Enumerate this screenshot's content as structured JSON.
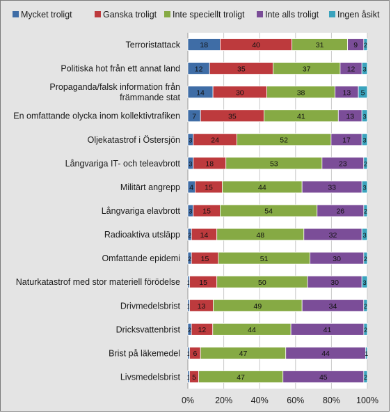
{
  "chart_data": {
    "type": "bar",
    "orientation": "horizontal",
    "stacked": true,
    "percent_stacked": true,
    "title": "",
    "xlabel": "",
    "ylabel": "",
    "xlim": [
      0,
      100
    ],
    "grid": true,
    "legend_position": "top",
    "x_ticks": [
      "0%",
      "20%",
      "40%",
      "60%",
      "80%",
      "100%"
    ],
    "categories": [
      "Terroristattack",
      "Politiska hot från ett annat land",
      "Propaganda/falsk information från främmande stat",
      "En omfattande olycka inom kollektivtrafiken",
      "Oljekatastrof i Östersjön",
      "Långvariga IT- och teleavbrott",
      "Militärt angrepp",
      "Långvariga elavbrott",
      "Radioaktiva utsläpp",
      "Omfattande epidemi",
      "Naturkatastrof med stor materiell förödelse",
      "Drivmedelsbrist",
      "Dricksvattenbrist",
      "Brist på läkemedel",
      "Livsmedelsbrist"
    ],
    "category_lines": [
      [
        "Terroristattack"
      ],
      [
        "Politiska hot från ett annat land"
      ],
      [
        "Propaganda/falsk information från",
        "främmande stat"
      ],
      [
        "En omfattande olycka inom kollektivtrafiken"
      ],
      [
        "Oljekatastrof i Östersjön"
      ],
      [
        "Långvariga IT- och teleavbrott"
      ],
      [
        "Militärt angrepp"
      ],
      [
        "Långvariga elavbrott"
      ],
      [
        "Radioaktiva utsläpp"
      ],
      [
        "Omfattande epidemi"
      ],
      [
        "Naturkatastrof med stor materiell förödelse"
      ],
      [
        "Drivmedelsbrist"
      ],
      [
        "Dricksvattenbrist"
      ],
      [
        "Brist på läkemedel"
      ],
      [
        "Livsmedelsbrist"
      ]
    ],
    "series": [
      {
        "name": "Mycket troligt",
        "color": "#3f6da6",
        "values": [
          18,
          12,
          14,
          7,
          3,
          3,
          4,
          3,
          2,
          2,
          1,
          1,
          2,
          1,
          1
        ]
      },
      {
        "name": "Ganska troligt",
        "color": "#bd3a3d",
        "values": [
          40,
          35,
          30,
          35,
          24,
          18,
          15,
          15,
          14,
          15,
          15,
          13,
          12,
          6,
          5
        ]
      },
      {
        "name": "Inte speciellt troligt",
        "color": "#86aa44",
        "values": [
          31,
          37,
          38,
          41,
          52,
          53,
          44,
          54,
          48,
          51,
          50,
          49,
          44,
          47,
          47
        ]
      },
      {
        "name": "Inte alls troligt",
        "color": "#7b4d98",
        "values": [
          9,
          12,
          13,
          13,
          17,
          23,
          33,
          26,
          32,
          30,
          30,
          34,
          41,
          44,
          45
        ]
      },
      {
        "name": "Ingen åsikt",
        "color": "#3aa3bd",
        "values": [
          2,
          3,
          5,
          3,
          3,
          2,
          3,
          2,
          3,
          2,
          3,
          2,
          2,
          1,
          2
        ]
      }
    ]
  }
}
